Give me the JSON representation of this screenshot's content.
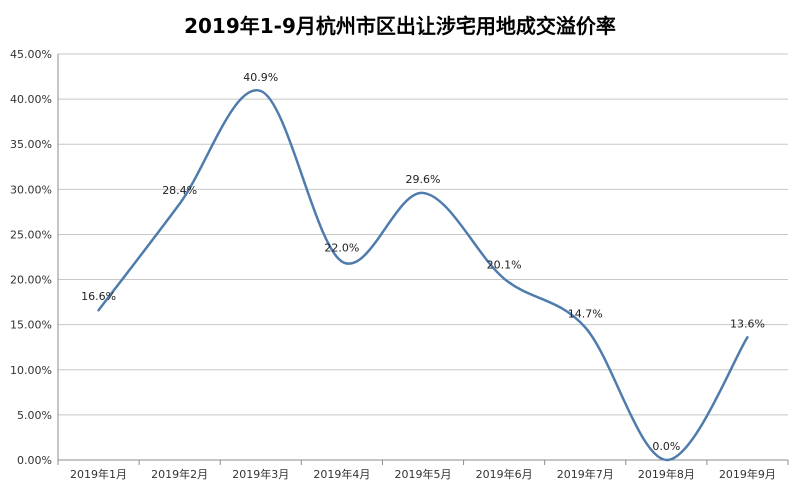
{
  "chart_data": {
    "type": "line",
    "title": "2019年1-9月杭州市区出让涉宅用地成交溢价率",
    "categories": [
      "2019年1月",
      "2019年2月",
      "2019年3月",
      "2019年4月",
      "2019年5月",
      "2019年6月",
      "2019年7月",
      "2019年8月",
      "2019年9月"
    ],
    "series": [
      {
        "values": [
          16.6,
          28.4,
          40.9,
          22.0,
          29.6,
          20.1,
          14.7,
          0.0,
          13.6
        ],
        "labels": [
          "16.6%",
          "28.4%",
          "40.9%",
          "22.0%",
          "29.6%",
          "20.1%",
          "14.7%",
          "0.0%",
          "13.6%"
        ],
        "color": "#4f7cac"
      }
    ],
    "yticks": [
      "0.00%",
      "5.00%",
      "10.00%",
      "15.00%",
      "20.00%",
      "25.00%",
      "30.00%",
      "35.00%",
      "40.00%",
      "45.00%"
    ],
    "ylim": [
      0,
      45
    ],
    "smooth": true,
    "grid": true,
    "legend": "none"
  }
}
